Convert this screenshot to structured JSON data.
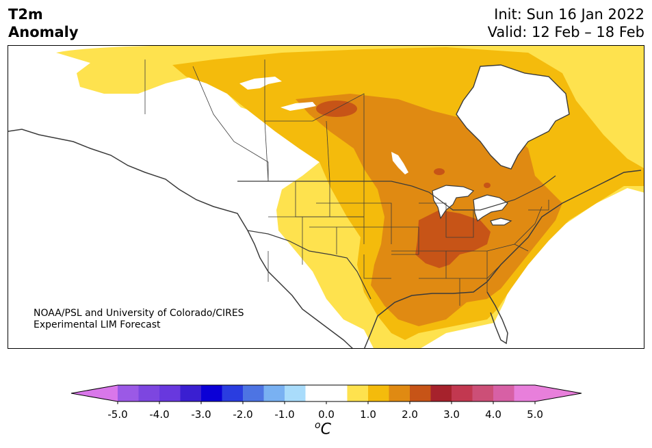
{
  "header": {
    "title_line1": "T2m",
    "title_line2": "Anomaly",
    "init": "Init: Sun 16 Jan 2022",
    "valid": "Valid: 12 Feb – 18 Feb"
  },
  "credit": {
    "line1": "NOAA/PSL and University of Colorado/CIRES",
    "line2": "Experimental LIM Forecast"
  },
  "colorbar": {
    "unit_base": "C",
    "unit_sup": "o",
    "tick_labels": [
      "-5.0",
      "-4.0",
      "-3.0",
      "-2.0",
      "-1.0",
      "0.0",
      "1.0",
      "2.0",
      "3.0",
      "4.0",
      "5.0"
    ],
    "low_extend_color": "#d977ea",
    "high_extend_color": "#e87fdb",
    "bins": [
      {
        "range": [
          -5.0,
          -4.5
        ],
        "color": "#9b59e6"
      },
      {
        "range": [
          -4.5,
          -4.0
        ],
        "color": "#7d46e0"
      },
      {
        "range": [
          -4.0,
          -3.5
        ],
        "color": "#6838de"
      },
      {
        "range": [
          -3.5,
          -3.0
        ],
        "color": "#3a1fd1"
      },
      {
        "range": [
          -3.0,
          -2.5
        ],
        "color": "#0b00d6"
      },
      {
        "range": [
          -2.5,
          -2.0
        ],
        "color": "#2a3de0"
      },
      {
        "range": [
          -2.0,
          -1.5
        ],
        "color": "#4d74e3"
      },
      {
        "range": [
          -1.5,
          -1.0
        ],
        "color": "#79b1f2"
      },
      {
        "range": [
          -1.0,
          -0.5
        ],
        "color": "#a9dcfb"
      },
      {
        "range": [
          -0.5,
          0.5
        ],
        "color": "#ffffff"
      },
      {
        "range": [
          0.5,
          1.0
        ],
        "color": "#fee24e"
      },
      {
        "range": [
          1.0,
          1.5
        ],
        "color": "#f4bb0c"
      },
      {
        "range": [
          1.5,
          2.0
        ],
        "color": "#e08a12"
      },
      {
        "range": [
          2.0,
          2.5
        ],
        "color": "#c75417"
      },
      {
        "range": [
          2.5,
          3.0
        ],
        "color": "#a6222c"
      },
      {
        "range": [
          3.0,
          3.5
        ],
        "color": "#c23850"
      },
      {
        "range": [
          3.5,
          4.0
        ],
        "color": "#cc4f77"
      },
      {
        "range": [
          4.0,
          4.5
        ],
        "color": "#d760a5"
      },
      {
        "range": [
          4.5,
          5.0
        ],
        "color": "#e87fdb"
      }
    ]
  },
  "map_colors": {
    "level_05": "#fee24e",
    "level_10": "#f4bb0c",
    "level_15": "#e08a12",
    "level_20": "#c75417",
    "coast": "#3a3a3a",
    "border": "#3a3a3a"
  }
}
